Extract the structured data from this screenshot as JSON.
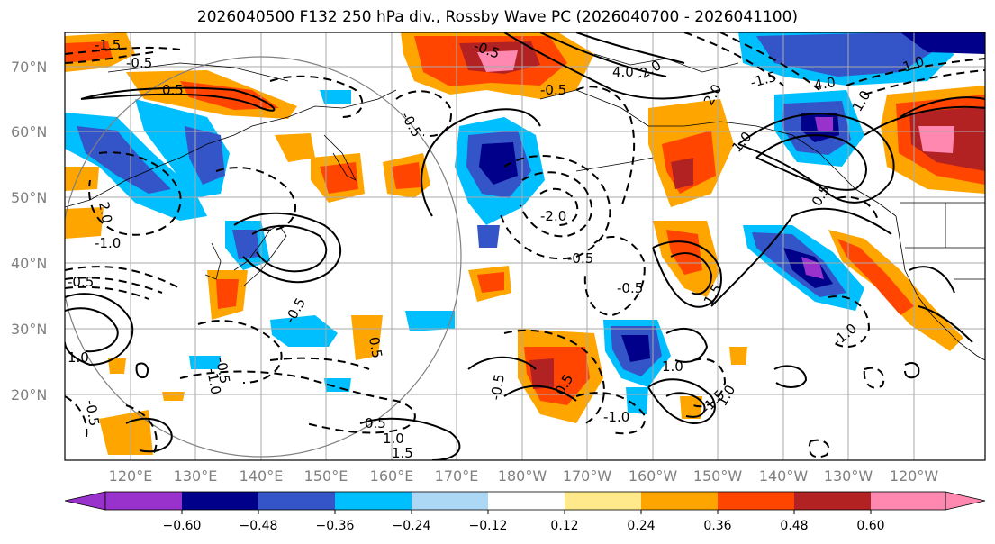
{
  "title": "2026040500 F132 250 hPa div., Rossby Wave PC (2026040700 - 2026041100)",
  "lat_labels": [
    "70°N",
    "60°N",
    "50°N",
    "40°N",
    "30°N",
    "20°N"
  ],
  "lat_values": [
    70,
    60,
    50,
    40,
    30,
    20
  ],
  "lon_labels": [
    "120°E",
    "130°E",
    "140°E",
    "150°E",
    "160°E",
    "170°E",
    "180°W",
    "170°W",
    "160°W",
    "150°W",
    "140°W",
    "130°W",
    "120°W"
  ],
  "lon_values": [
    120,
    130,
    140,
    150,
    160,
    170,
    180,
    190,
    200,
    210,
    220,
    230,
    240
  ],
  "map_extent": {
    "lon_min": 112,
    "lon_max": 253,
    "lat_min": 10,
    "lat_max": 75
  },
  "colorbar": {
    "ticks": [
      "−0.60",
      "−0.48",
      "−0.36",
      "−0.24",
      "−0.12",
      "0.12",
      "0.24",
      "0.36",
      "0.48",
      "0.60"
    ],
    "colors": [
      "#9932cc",
      "#00008b",
      "#3455c8",
      "#00bfff",
      "#add8f5",
      "#ffffff",
      "#ffe98a",
      "#ffa500",
      "#ff4500",
      "#b22222",
      "#ff88b0"
    ]
  },
  "contour_labels": [
    "-1.5",
    "-0.5",
    "0.5",
    "-0.5",
    "-0.5",
    "-0.5",
    "-2.0",
    "-0.5",
    "-1.0",
    "4.0",
    "-2.0",
    "2.0",
    "1.0",
    "1.0",
    "1.5",
    "-0.5",
    "1.0",
    "-1.0",
    "-1.5",
    "1.0",
    "0.5",
    "1.0",
    "1.5",
    "-0.5",
    "0.5",
    "-0.5",
    "1.0",
    "-0.5",
    "-1.0",
    "-0.5",
    "2.0",
    "-1.0",
    "1.0",
    "0.5",
    "-1.5",
    "4.0",
    "-0.5",
    "0.5"
  ],
  "colors": {
    "grid": "#aaaaaa",
    "coast": "#000000",
    "circle": "#808080"
  }
}
